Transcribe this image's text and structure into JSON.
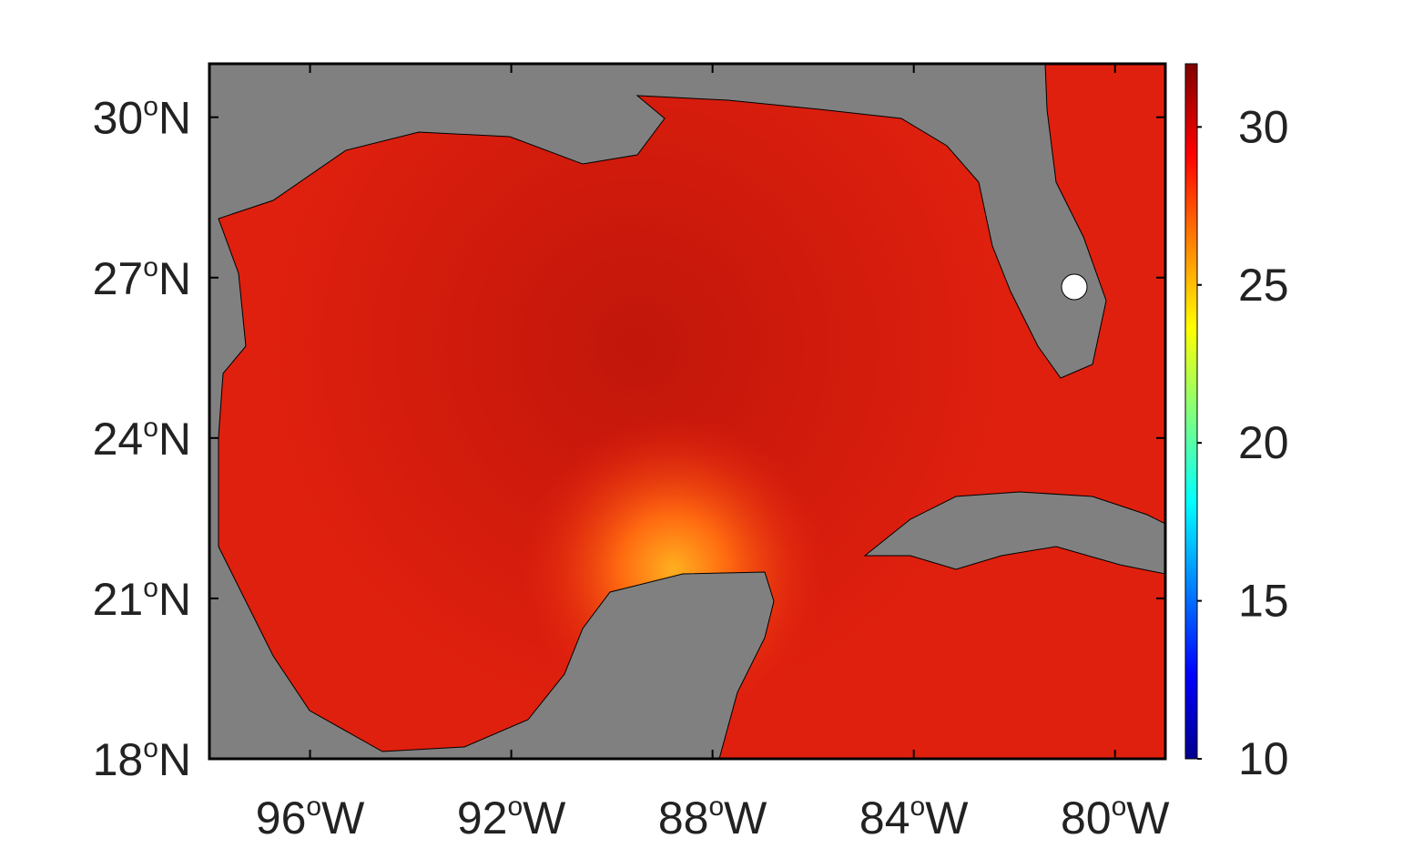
{
  "map": {
    "degree_symbol": "o",
    "lat_hemisphere": "N",
    "lon_hemisphere": "W",
    "latlim": [
      18,
      31
    ],
    "lat_ticks": [
      18,
      21,
      24,
      27,
      30
    ],
    "lonlim": [
      98,
      79
    ],
    "lon_ticks": [
      96,
      92,
      88,
      84,
      80
    ],
    "colorbar": {
      "range": [
        10,
        32
      ],
      "ticks": [
        10,
        15,
        20,
        25,
        30
      ]
    }
  }
}
